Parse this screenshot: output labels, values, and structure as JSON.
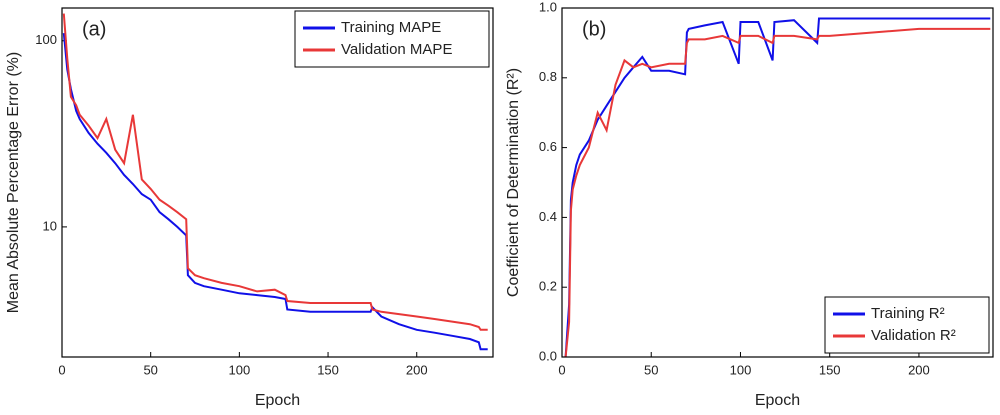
{
  "chart_data": [
    {
      "type": "line",
      "panel_label": "(a)",
      "xlabel": "Epoch",
      "ylabel": "Mean Absolute Percentage Error (%)",
      "log_y": true,
      "legend": "upper right",
      "x": [
        1,
        3,
        5,
        8,
        10,
        15,
        20,
        25,
        30,
        35,
        40,
        45,
        50,
        55,
        60,
        65,
        70,
        71,
        75,
        80,
        90,
        100,
        110,
        120,
        126,
        127,
        140,
        160,
        174,
        175,
        180,
        190,
        200,
        210,
        220,
        230,
        235,
        236,
        240
      ],
      "series": [
        {
          "name": "Training MAPE",
          "color": "#1010e8",
          "values": [
            110,
            70,
            55,
            42,
            38,
            32,
            28,
            25,
            22,
            19,
            17,
            15,
            14,
            12,
            11,
            10,
            9,
            5.5,
            5,
            4.8,
            4.6,
            4.4,
            4.3,
            4.2,
            4.1,
            3.6,
            3.5,
            3.5,
            3.5,
            3.7,
            3.3,
            3.0,
            2.8,
            2.7,
            2.6,
            2.5,
            2.4,
            2.2,
            2.2
          ]
        },
        {
          "name": "Validation MAPE",
          "color": "#e83838",
          "values": [
            140,
            80,
            50,
            45,
            40,
            35,
            30,
            38,
            26,
            22,
            40,
            18,
            16,
            14,
            13,
            12,
            11,
            6,
            5.5,
            5.3,
            5.0,
            4.8,
            4.5,
            4.6,
            4.3,
            4.0,
            3.9,
            3.9,
            3.9,
            3.6,
            3.5,
            3.4,
            3.3,
            3.2,
            3.1,
            3.0,
            2.9,
            2.8,
            2.8
          ]
        }
      ],
      "xlim": [
        0,
        243
      ],
      "xticks": [
        0,
        50,
        100,
        150,
        200
      ],
      "ylim": [
        2,
        150
      ],
      "yticks": [
        10,
        100
      ]
    },
    {
      "type": "line",
      "panel_label": "(b)",
      "xlabel": "Epoch",
      "ylabel": "Coefficient of Determination (R²)",
      "log_y": false,
      "legend": "lower right",
      "x": [
        2,
        4,
        5,
        6,
        8,
        10,
        15,
        20,
        25,
        30,
        35,
        40,
        45,
        50,
        60,
        69,
        70,
        71,
        80,
        90,
        99,
        100,
        110,
        118,
        119,
        130,
        143,
        144,
        150,
        175,
        200,
        240
      ],
      "series": [
        {
          "name": "Training R²",
          "color": "#1010e8",
          "values": [
            0.0,
            0.15,
            0.45,
            0.5,
            0.55,
            0.58,
            0.62,
            0.68,
            0.72,
            0.76,
            0.8,
            0.83,
            0.86,
            0.82,
            0.82,
            0.81,
            0.93,
            0.94,
            0.95,
            0.96,
            0.84,
            0.96,
            0.96,
            0.85,
            0.96,
            0.965,
            0.9,
            0.97,
            0.97,
            0.97,
            0.97,
            0.97
          ]
        },
        {
          "name": "Validation R²",
          "color": "#e83838",
          "values": [
            0.0,
            0.1,
            0.42,
            0.48,
            0.52,
            0.55,
            0.6,
            0.7,
            0.65,
            0.78,
            0.85,
            0.83,
            0.84,
            0.83,
            0.84,
            0.84,
            0.9,
            0.91,
            0.91,
            0.92,
            0.9,
            0.92,
            0.92,
            0.9,
            0.92,
            0.92,
            0.91,
            0.92,
            0.92,
            0.93,
            0.94,
            0.94
          ]
        }
      ],
      "xlim": [
        0,
        241.5
      ],
      "xticks": [
        0,
        50,
        100,
        150,
        200
      ],
      "ylim": [
        0,
        1
      ],
      "yticks": [
        {
          "value": 0,
          "label": "0.0"
        },
        0.2,
        0.4,
        0.6,
        0.8,
        {
          "value": 1,
          "label": "1.0"
        }
      ]
    }
  ]
}
